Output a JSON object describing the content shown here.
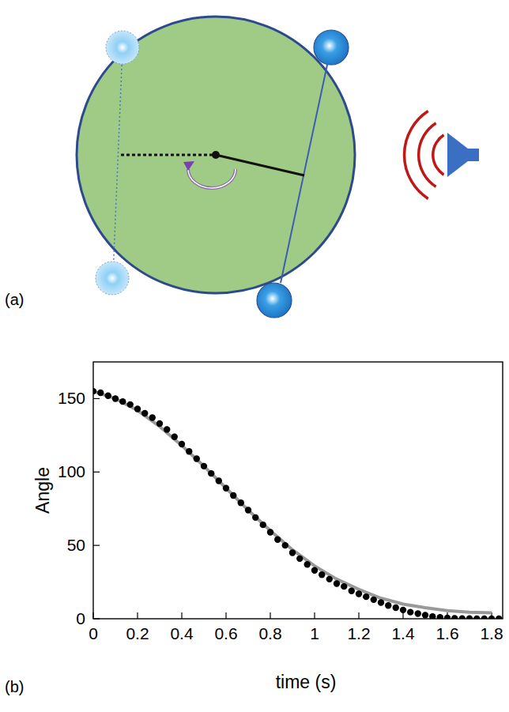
{
  "panel_labels": {
    "a": "(a)",
    "b": "(b)"
  },
  "chart_data": {
    "type": "scatter",
    "x_label": "time (s)",
    "y_label": "Angle",
    "xlim": [
      0,
      1.85
    ],
    "ylim": [
      0,
      175
    ],
    "xticks": [
      0,
      0.2,
      0.4,
      0.6,
      0.8,
      1.0,
      1.2,
      1.4,
      1.6,
      1.8
    ],
    "yticks": [
      0,
      50,
      100,
      150
    ],
    "grid": false,
    "series": [
      {
        "type": "scatter",
        "color": "#000000",
        "marker": "circle",
        "x": [
          0,
          0.033,
          0.067,
          0.1,
          0.133,
          0.167,
          0.2,
          0.233,
          0.267,
          0.3,
          0.333,
          0.367,
          0.4,
          0.433,
          0.467,
          0.5,
          0.533,
          0.567,
          0.6,
          0.633,
          0.667,
          0.7,
          0.733,
          0.767,
          0.8,
          0.833,
          0.867,
          0.9,
          0.933,
          0.967,
          1.0,
          1.033,
          1.067,
          1.1,
          1.133,
          1.167,
          1.2,
          1.233,
          1.267,
          1.3,
          1.333,
          1.367,
          1.4,
          1.433,
          1.467,
          1.5,
          1.533,
          1.567,
          1.6,
          1.633,
          1.667,
          1.7,
          1.733,
          1.767,
          1.8,
          1.833
        ],
        "values": [
          155,
          154,
          152,
          150,
          148,
          146,
          143,
          140,
          137,
          133,
          129,
          124,
          119,
          114,
          109,
          104,
          99,
          94,
          89,
          84,
          79,
          74,
          69,
          64,
          59,
          54,
          50,
          45,
          41,
          37,
          33,
          30,
          27,
          24,
          22,
          19,
          17,
          15,
          13,
          11,
          9,
          7.5,
          6,
          4.5,
          3.5,
          2.5,
          1.5,
          1,
          0.5,
          0.3,
          0.2,
          0.1,
          0,
          0,
          0,
          0
        ]
      },
      {
        "type": "line",
        "color": "#999999",
        "line_style": "solid",
        "x": [
          0,
          0.1,
          0.2,
          0.3,
          0.4,
          0.5,
          0.6,
          0.7,
          0.8,
          0.9,
          1.0,
          1.1,
          1.2,
          1.3,
          1.4,
          1.5,
          1.6,
          1.7,
          1.8
        ],
        "values": [
          155,
          150,
          142,
          131,
          118,
          104,
          89,
          74,
          60,
          47,
          36,
          27,
          20,
          14,
          10,
          7.5,
          5.5,
          4.5,
          4
        ]
      }
    ]
  }
}
